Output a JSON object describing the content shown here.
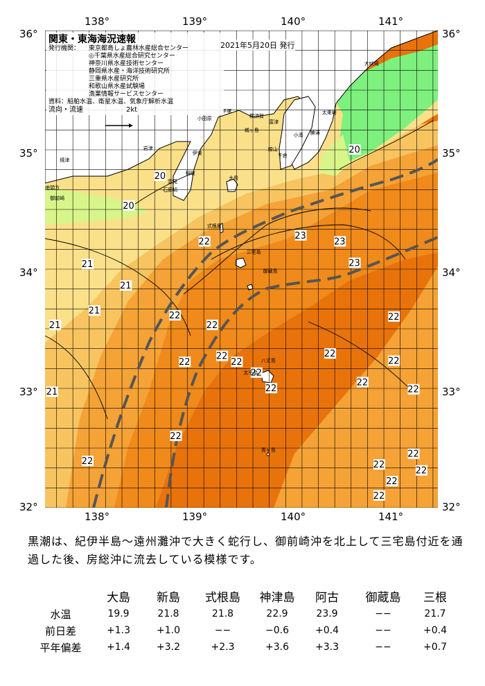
{
  "map": {
    "title": "関東・東海海況速報",
    "date": "2021年5月20日 発行",
    "issuers_label": "発行機関：",
    "issuers": [
      "東京都島しょ農林水産総合センター",
      "◎千葉県水産総合研究センター",
      "神奈川県水産技術センター",
      "静岡県水産・海洋技術研究所",
      "三重県水産研究所",
      "和歌山県水産試験場",
      "漁業情報サービスセンター"
    ],
    "sources": "資料：船舶水温、衛星水温、気象庁解析水温",
    "current_legend": "流向・流速",
    "current_speed": "2kt",
    "lon_labels": [
      "138°",
      "139°",
      "140°",
      "141°"
    ],
    "lat_labels": [
      "36°",
      "35°",
      "34°",
      "33°",
      "32°"
    ],
    "temperature_labels": [
      {
        "text": "20",
        "lon": 140.7,
        "lat": 35.0
      },
      {
        "text": "20",
        "lon": 138.72,
        "lat": 34.78
      },
      {
        "text": "20",
        "lon": 138.4,
        "lat": 34.53
      },
      {
        "text": "21",
        "lon": 137.98,
        "lat": 34.04
      },
      {
        "text": "21",
        "lon": 138.37,
        "lat": 33.86
      },
      {
        "text": "21",
        "lon": 138.05,
        "lat": 33.65
      },
      {
        "text": "21",
        "lon": 137.65,
        "lat": 33.53
      },
      {
        "text": "21",
        "lon": 137.62,
        "lat": 32.97
      },
      {
        "text": "22",
        "lon": 139.17,
        "lat": 34.23
      },
      {
        "text": "22",
        "lon": 138.87,
        "lat": 33.61
      },
      {
        "text": "22",
        "lon": 139.25,
        "lat": 33.53
      },
      {
        "text": "22",
        "lon": 139.35,
        "lat": 33.27
      },
      {
        "text": "22",
        "lon": 139.5,
        "lat": 33.22
      },
      {
        "text": "22",
        "lon": 138.97,
        "lat": 33.22
      },
      {
        "text": "22",
        "lon": 139.7,
        "lat": 33.13
      },
      {
        "text": "22",
        "lon": 139.85,
        "lat": 33.0
      },
      {
        "text": "22",
        "lon": 140.45,
        "lat": 33.29
      },
      {
        "text": "22",
        "lon": 140.78,
        "lat": 33.05
      },
      {
        "text": "22",
        "lon": 141.1,
        "lat": 33.6
      },
      {
        "text": "22",
        "lon": 141.1,
        "lat": 33.23
      },
      {
        "text": "22",
        "lon": 141.3,
        "lat": 32.99
      },
      {
        "text": "22",
        "lon": 138.88,
        "lat": 32.6
      },
      {
        "text": "22",
        "lon": 137.98,
        "lat": 32.39
      },
      {
        "text": "22",
        "lon": 140.95,
        "lat": 32.36
      },
      {
        "text": "22",
        "lon": 141.3,
        "lat": 32.45
      },
      {
        "text": "22",
        "lon": 141.38,
        "lat": 32.31
      },
      {
        "text": "22",
        "lon": 141.08,
        "lat": 32.22
      },
      {
        "text": "22",
        "lon": 140.95,
        "lat": 32.1
      },
      {
        "text": "23",
        "lon": 140.15,
        "lat": 34.28
      },
      {
        "text": "23",
        "lon": 140.55,
        "lat": 34.23
      },
      {
        "text": "23",
        "lon": 140.7,
        "lat": 34.05
      }
    ],
    "place_labels": [
      {
        "text": "大吠埼",
        "lon": 140.8,
        "lat": 35.71
      },
      {
        "text": "太東崎",
        "lon": 140.37,
        "lat": 35.3
      },
      {
        "text": "勝浦",
        "lon": 140.25,
        "lat": 35.13
      },
      {
        "text": "小湊",
        "lon": 140.08,
        "lat": 35.11
      },
      {
        "text": "館山",
        "lon": 139.82,
        "lat": 34.99
      },
      {
        "text": "千倉",
        "lon": 139.92,
        "lat": 34.94
      },
      {
        "text": "横須賀",
        "lon": 139.63,
        "lat": 35.27
      },
      {
        "text": "平塚",
        "lon": 139.35,
        "lat": 35.31
      },
      {
        "text": "小田原",
        "lon": 139.1,
        "lat": 35.25
      },
      {
        "text": "城ヶ島",
        "lon": 139.58,
        "lat": 35.15
      },
      {
        "text": "富津",
        "lon": 139.83,
        "lat": 35.22
      },
      {
        "text": "伊東",
        "lon": 139.05,
        "lat": 34.96
      },
      {
        "text": "稲取",
        "lon": 138.98,
        "lat": 34.79
      },
      {
        "text": "焼津",
        "lon": 137.7,
        "lat": 34.9
      },
      {
        "text": "岩津",
        "lon": 138.55,
        "lat": 35.0
      },
      {
        "text": "雲見",
        "lon": 138.8,
        "lat": 34.72
      },
      {
        "text": "石廊崎",
        "lon": 138.75,
        "lat": 34.65
      },
      {
        "text": "地頭方",
        "lon": 137.55,
        "lat": 34.67
      },
      {
        "text": "御前崎",
        "lon": 137.6,
        "lat": 34.58
      },
      {
        "text": "大島",
        "lon": 139.42,
        "lat": 34.75
      },
      {
        "text": "式根島",
        "lon": 139.2,
        "lat": 34.35
      },
      {
        "text": "三宅島",
        "lon": 139.6,
        "lat": 34.13
      },
      {
        "text": "御蔵島",
        "lon": 139.77,
        "lat": 33.97
      },
      {
        "text": "八丈島",
        "lon": 139.75,
        "lat": 33.22
      },
      {
        "text": "太平島",
        "lon": 139.57,
        "lat": 33.12
      },
      {
        "text": "青ヶ島",
        "lon": 139.75,
        "lat": 32.47
      }
    ]
  },
  "description": "黒潮は、紀伊半島～遠州灘沖で大きく蛇行し、御前崎沖を北上して三宅島付近を通過した後、房総沖に流去している模様です。",
  "table": {
    "columns": [
      "大島",
      "新島",
      "式根島",
      "神津島",
      "阿古",
      "御蔵島",
      "三根"
    ],
    "rows": [
      {
        "label": "水温",
        "values": [
          "19.9",
          "21.8",
          "21.8",
          "22.9",
          "23.9",
          "−−",
          "21.7"
        ]
      },
      {
        "label": "前日差",
        "values": [
          "+1.3",
          "+1.0",
          "−−",
          "−0.6",
          "+0.4",
          "−−",
          "+0.4"
        ]
      },
      {
        "label": "平年偏差",
        "values": [
          "+1.4",
          "+3.2",
          "+2.3",
          "+3.6",
          "+3.3",
          "−−",
          "+0.7"
        ]
      }
    ]
  },
  "colors": {
    "land": "#ffffff",
    "green": "#7df07d",
    "light_green": "#d8f58a",
    "yellow": "#fbe08a",
    "pale_orange": "#f7c460",
    "orange": "#f5a236",
    "deep_orange": "#f08a1a",
    "dark_orange": "#e8730a",
    "kuroshio": "#555555"
  }
}
